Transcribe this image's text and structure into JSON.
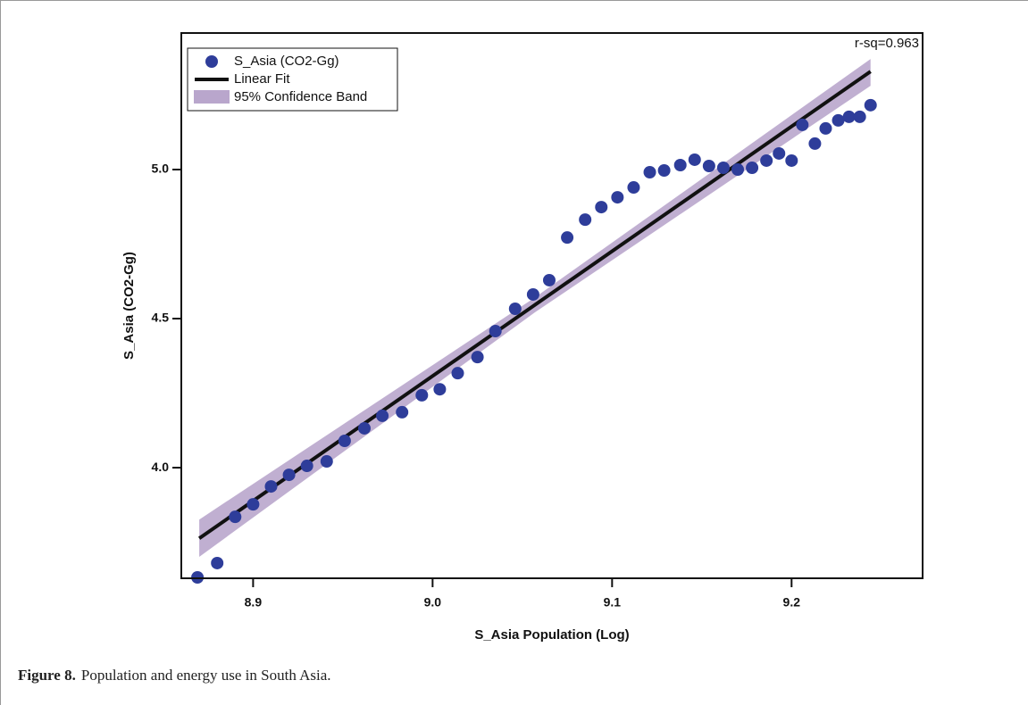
{
  "chart_data": {
    "type": "scatter",
    "xlabel": "S_Asia Population (Log)",
    "ylabel": "S_Asia (CO2-Gg)",
    "annotation": "r-sq=0.963",
    "xlim": [
      8.86,
      9.273
    ],
    "ylim": [
      3.629,
      5.458
    ],
    "xticks": [
      8.9,
      9.0,
      9.1,
      9.2
    ],
    "yticks": [
      4.0,
      4.5,
      5.0
    ],
    "legend": "upper left",
    "series": [
      {
        "name": "S_Asia (CO2-Gg)",
        "type": "scatter",
        "color": "#2e3d9a",
        "x": [
          8.869,
          8.88,
          8.89,
          8.9,
          8.91,
          8.92,
          8.93,
          8.941,
          8.951,
          8.962,
          8.972,
          8.983,
          8.994,
          9.004,
          9.014,
          9.025,
          9.035,
          9.046,
          9.056,
          9.065,
          9.075,
          9.085,
          9.094,
          9.103,
          9.112,
          9.121,
          9.129,
          9.138,
          9.146,
          9.154,
          9.162,
          9.17,
          9.178,
          9.186,
          9.193,
          9.2,
          9.206,
          9.213,
          9.219,
          9.226,
          9.232,
          9.238,
          9.244
        ],
        "y": [
          3.632,
          3.68,
          3.835,
          3.877,
          3.937,
          3.976,
          4.006,
          4.021,
          4.09,
          4.132,
          4.174,
          4.186,
          4.243,
          4.263,
          4.317,
          4.371,
          4.458,
          4.533,
          4.581,
          4.629,
          4.772,
          4.832,
          4.874,
          4.907,
          4.94,
          4.991,
          4.997,
          5.015,
          5.033,
          5.012,
          5.006,
          5.0,
          5.006,
          5.03,
          5.054,
          5.03,
          5.15,
          5.087,
          5.138,
          5.165,
          5.177,
          5.177,
          5.216
        ]
      },
      {
        "name": "Linear Fit",
        "type": "line",
        "color": "#111111",
        "x": [
          8.87,
          9.244
        ],
        "y": [
          3.763,
          5.329
        ]
      },
      {
        "name": "95% Confidence Band",
        "type": "band",
        "color": "#b9a6cc",
        "x": [
          8.87,
          9.057,
          9.244
        ],
        "upper": [
          3.826,
          4.571,
          5.371
        ],
        "lower": [
          3.701,
          4.521,
          5.281
        ]
      }
    ]
  },
  "caption": {
    "label": "Figure 8.",
    "text": "Population and energy use in South Asia."
  }
}
